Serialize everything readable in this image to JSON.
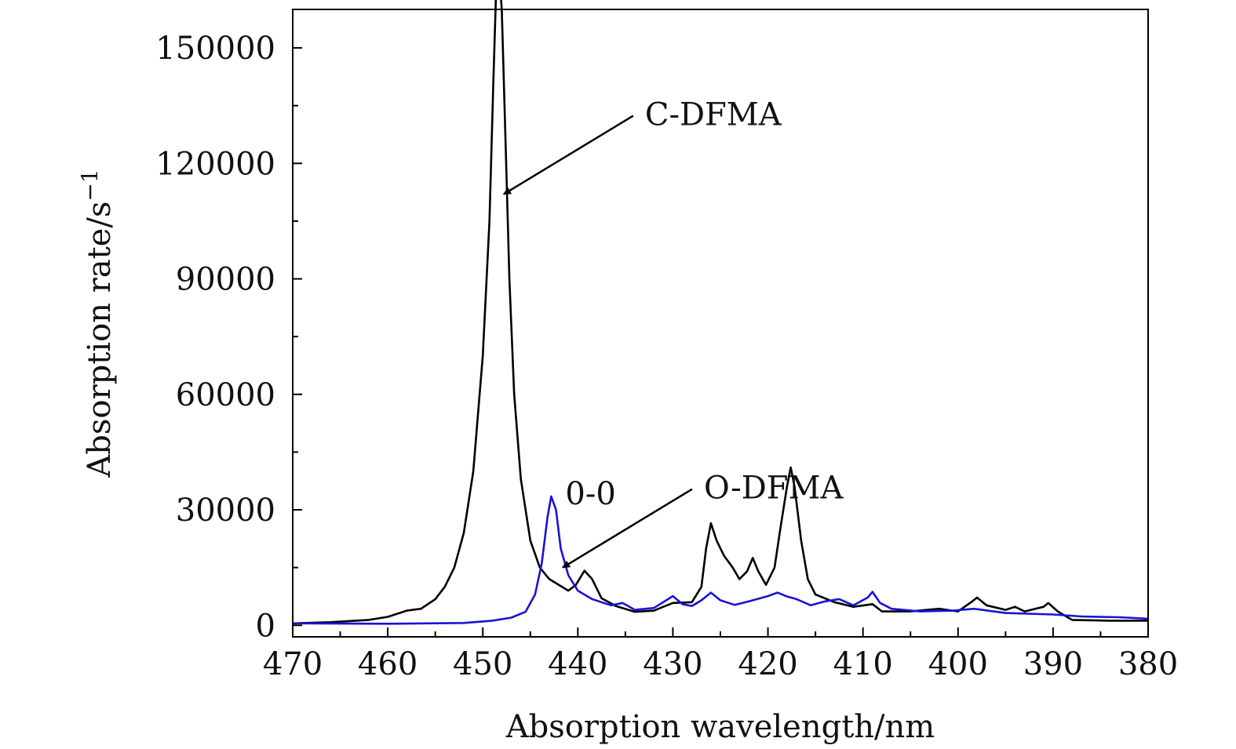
{
  "chart_data": {
    "type": "line",
    "xlabel": "Absorption wavelength/nm",
    "ylabel": "Absorption rate/s",
    "ylabel_sup": "−1",
    "xlim": [
      470,
      380
    ],
    "ylim": [
      -3000,
      160000
    ],
    "x_reversed": true,
    "grid": false,
    "legend": "none",
    "x_ticks": [
      470,
      460,
      450,
      440,
      430,
      420,
      410,
      400,
      390,
      380
    ],
    "y_ticks": [
      0,
      30000,
      60000,
      90000,
      120000,
      150000
    ],
    "series": [
      {
        "name": "C-DFMA",
        "color": "#000000",
        "points": [
          [
            470,
            500
          ],
          [
            466,
            800
          ],
          [
            462,
            1400
          ],
          [
            460,
            2200
          ],
          [
            458,
            3800
          ],
          [
            456.5,
            4300
          ],
          [
            455,
            6800
          ],
          [
            454,
            10000
          ],
          [
            453,
            15000
          ],
          [
            452,
            24000
          ],
          [
            451,
            40000
          ],
          [
            450,
            70000
          ],
          [
            449.3,
            105000
          ],
          [
            448.9,
            140000
          ],
          [
            448.6,
            165000
          ],
          [
            448.3,
            170000
          ],
          [
            448.0,
            160000
          ],
          [
            447.6,
            125000
          ],
          [
            447.2,
            90000
          ],
          [
            446.7,
            60000
          ],
          [
            446,
            38000
          ],
          [
            445,
            22000
          ],
          [
            444,
            15000
          ],
          [
            443,
            12000
          ],
          [
            442,
            10500
          ],
          [
            441,
            9000
          ],
          [
            440.2,
            10500
          ],
          [
            439.3,
            14200
          ],
          [
            438.5,
            12000
          ],
          [
            437.5,
            7000
          ],
          [
            436,
            5000
          ],
          [
            434,
            3500
          ],
          [
            432,
            3800
          ],
          [
            430,
            5800
          ],
          [
            428,
            6000
          ],
          [
            427,
            10000
          ],
          [
            426.5,
            20000
          ],
          [
            426,
            26500
          ],
          [
            425.4,
            22000
          ],
          [
            424.6,
            18000
          ],
          [
            423.7,
            15000
          ],
          [
            423,
            12000
          ],
          [
            422.2,
            14000
          ],
          [
            421.6,
            17500
          ],
          [
            421,
            14000
          ],
          [
            420.2,
            10500
          ],
          [
            419.3,
            15000
          ],
          [
            418.7,
            25000
          ],
          [
            418,
            36000
          ],
          [
            417.6,
            41000
          ],
          [
            417.2,
            36000
          ],
          [
            416.5,
            22000
          ],
          [
            415.8,
            12000
          ],
          [
            415,
            8000
          ],
          [
            413,
            6000
          ],
          [
            411,
            4800
          ],
          [
            409,
            5500
          ],
          [
            408,
            3600
          ],
          [
            405,
            3600
          ],
          [
            402,
            4300
          ],
          [
            400,
            3600
          ],
          [
            398.5,
            6200
          ],
          [
            398,
            7200
          ],
          [
            397,
            5200
          ],
          [
            395,
            4000
          ],
          [
            394,
            4800
          ],
          [
            393,
            3600
          ],
          [
            391,
            4800
          ],
          [
            390.5,
            5800
          ],
          [
            389.5,
            3600
          ],
          [
            388,
            1400
          ],
          [
            384,
            1200
          ],
          [
            380,
            1200
          ]
        ]
      },
      {
        "name": "O-DFMA",
        "color": "#1a12d6",
        "points": [
          [
            470,
            500
          ],
          [
            460,
            400
          ],
          [
            452,
            600
          ],
          [
            449,
            1200
          ],
          [
            447,
            2000
          ],
          [
            445.5,
            3500
          ],
          [
            444.5,
            8000
          ],
          [
            443.8,
            16000
          ],
          [
            443.2,
            28000
          ],
          [
            442.8,
            33500
          ],
          [
            442.3,
            30000
          ],
          [
            441.8,
            20000
          ],
          [
            441,
            13000
          ],
          [
            440,
            9000
          ],
          [
            438.5,
            6800
          ],
          [
            436.5,
            5200
          ],
          [
            435.3,
            5800
          ],
          [
            434,
            4000
          ],
          [
            432,
            4500
          ],
          [
            430.5,
            6800
          ],
          [
            430,
            7600
          ],
          [
            429,
            5500
          ],
          [
            428,
            5000
          ],
          [
            427,
            6500
          ],
          [
            426,
            8500
          ],
          [
            425,
            6500
          ],
          [
            423.5,
            5300
          ],
          [
            422,
            6200
          ],
          [
            420,
            7600
          ],
          [
            419,
            8500
          ],
          [
            418,
            7500
          ],
          [
            417,
            6800
          ],
          [
            415.5,
            5200
          ],
          [
            414,
            6200
          ],
          [
            412.5,
            6800
          ],
          [
            411,
            5200
          ],
          [
            409.5,
            7200
          ],
          [
            409,
            8700
          ],
          [
            408.2,
            5800
          ],
          [
            407,
            4300
          ],
          [
            404,
            3600
          ],
          [
            400.5,
            3800
          ],
          [
            398.3,
            4300
          ],
          [
            395,
            3200
          ],
          [
            390,
            2800
          ],
          [
            387,
            2300
          ],
          [
            383,
            2100
          ],
          [
            380,
            1700
          ]
        ]
      }
    ],
    "annotations": [
      {
        "text": "0-0",
        "x": 448.3,
        "y": 170000,
        "kind": "peak-label"
      },
      {
        "text": "0-0",
        "x": 442.8,
        "y": 33500,
        "kind": "peak-label"
      },
      {
        "text": "C-DFMA",
        "x": 447.8,
        "y": 112000,
        "kind": "arrow-label",
        "series": "C-DFMA"
      },
      {
        "text": "O-DFMA",
        "x": 441.6,
        "y": 15000,
        "kind": "arrow-label",
        "series": "O-DFMA"
      }
    ]
  }
}
